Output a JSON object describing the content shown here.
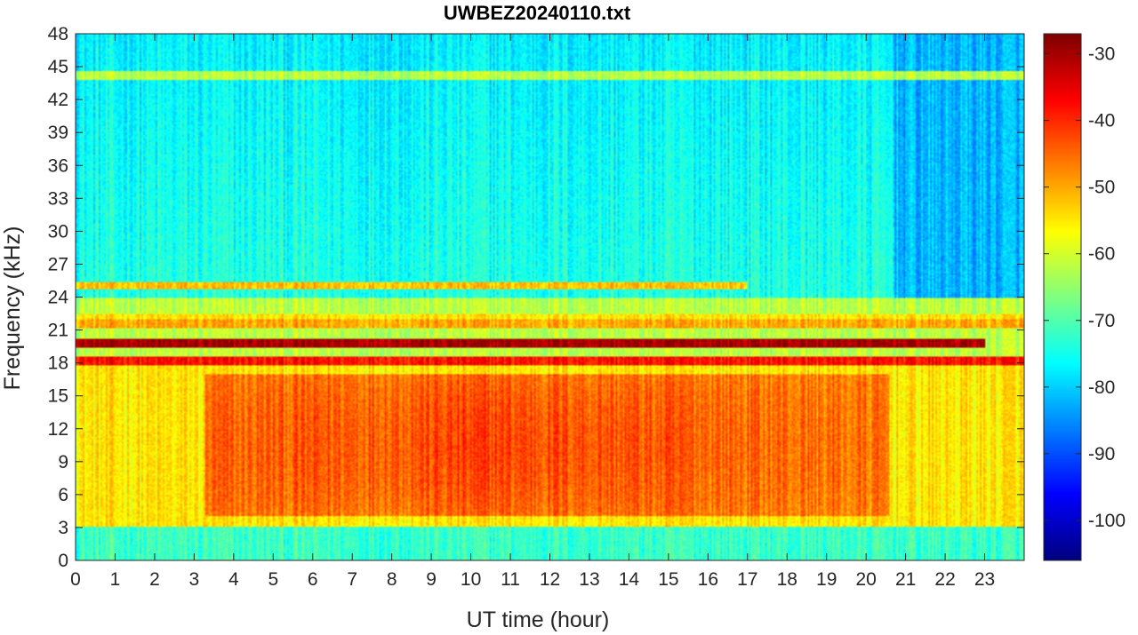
{
  "chart_data": {
    "type": "heatmap",
    "title": "UWBEZ20240110.txt",
    "xlabel": "UT time (hour)",
    "ylabel": "Frequency (kHz)",
    "xlim": [
      0,
      24
    ],
    "ylim": [
      0,
      48
    ],
    "xticks": [
      "0",
      "1",
      "2",
      "3",
      "4",
      "5",
      "6",
      "7",
      "8",
      "9",
      "10",
      "11",
      "12",
      "13",
      "14",
      "15",
      "16",
      "17",
      "18",
      "19",
      "20",
      "21",
      "22",
      "23"
    ],
    "yticks": [
      "0",
      "3",
      "6",
      "9",
      "12",
      "15",
      "18",
      "21",
      "24",
      "27",
      "30",
      "33",
      "36",
      "39",
      "42",
      "45",
      "48"
    ],
    "colorbar": {
      "colormap": "jet",
      "range": [
        -106,
        -27
      ],
      "ticks": [
        "-30",
        "-40",
        "-50",
        "-60",
        "-70",
        "-80",
        "-90",
        "-100"
      ]
    },
    "narrowband_lines": [
      {
        "freq_khz": 19.8,
        "level_db": -30,
        "start_hour": 0,
        "end_hour": 23
      },
      {
        "freq_khz": 18.2,
        "level_db": -38,
        "start_hour": 0,
        "end_hour": 24
      },
      {
        "freq_khz": 21.6,
        "level_db": -50,
        "start_hour": 0,
        "end_hour": 24
      },
      {
        "freq_khz": 25.0,
        "level_db": -52,
        "start_hour": 0,
        "end_hour": 17
      },
      {
        "freq_khz": 22.1,
        "level_db": -55,
        "start_hour": 0,
        "end_hour": 24
      },
      {
        "freq_khz": 44.2,
        "level_db": -62,
        "start_hour": 0,
        "end_hour": 24
      },
      {
        "freq_khz": 4.2,
        "level_db": -58,
        "start_hour": 0,
        "end_hour": 24
      }
    ],
    "broadband_emission": {
      "freq_range_khz": [
        4,
        17
      ],
      "peak_level_db": -42,
      "peak_hour": 10.5,
      "strong_hours": [
        3.3,
        20.6
      ]
    },
    "background_level_db": {
      "below_3khz": -72,
      "3_to_18khz": -55,
      "18_to_24khz": -62,
      "above_24khz": -74,
      "quiet_period_above_24khz": {
        "start_hour": 20.7,
        "end_hour": 24,
        "level_db": -82
      }
    }
  }
}
